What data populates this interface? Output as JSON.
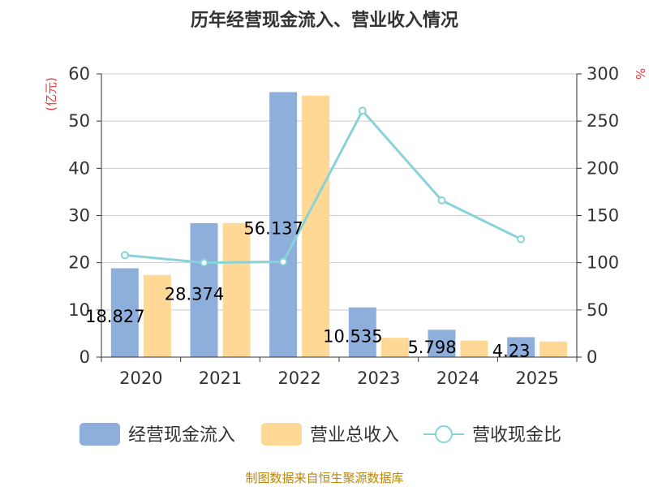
{
  "chart_data": {
    "type": "bar+line",
    "title": "历年经营现金流入、营业收入情况",
    "categories": [
      "2020",
      "2021",
      "2022",
      "2023",
      "2024",
      "2025"
    ],
    "series": [
      {
        "name": "经营现金流入",
        "type": "bar",
        "axis": "left",
        "color": "#8eaedb",
        "values": [
          18.827,
          28.374,
          56.137,
          10.535,
          5.798,
          4.23
        ],
        "labels": [
          "18.827",
          "28.374",
          "56.137",
          "10.535",
          "5.798",
          "4.23"
        ]
      },
      {
        "name": "营业总收入",
        "type": "bar",
        "axis": "left",
        "color": "#ffd895",
        "values": [
          17.4,
          28.4,
          55.4,
          4.1,
          3.5,
          3.3
        ]
      },
      {
        "name": "营收现金比",
        "type": "line",
        "axis": "right",
        "color": "#88d3d8",
        "values": [
          108,
          100,
          101,
          261,
          166,
          125
        ]
      }
    ],
    "left_axis": {
      "label": "(亿元)",
      "min": 0,
      "max": 60,
      "ticks": [
        "0",
        "10",
        "20",
        "30",
        "40",
        "50",
        "60"
      ]
    },
    "right_axis": {
      "label": "%",
      "min": 0,
      "max": 300,
      "ticks": [
        "0",
        "50",
        "100",
        "150",
        "200",
        "250",
        "300"
      ]
    },
    "axis_label_color": "#e53935",
    "source": "制图数据来自恒生聚源数据库",
    "source_color": "#b8860b"
  }
}
